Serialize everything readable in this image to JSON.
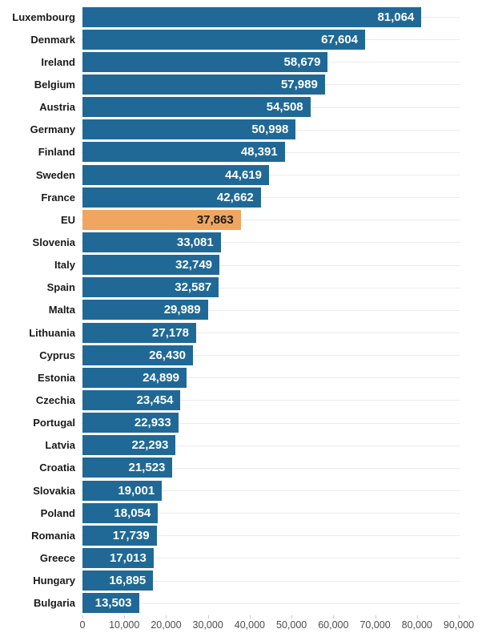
{
  "chart_data": {
    "type": "bar",
    "orientation": "horizontal",
    "title": "",
    "categories": [
      "Luxembourg",
      "Denmark",
      "Ireland",
      "Belgium",
      "Austria",
      "Germany",
      "Finland",
      "Sweden",
      "France",
      "EU",
      "Slovenia",
      "Italy",
      "Spain",
      "Malta",
      "Lithuania",
      "Cyprus",
      "Estonia",
      "Czechia",
      "Portugal",
      "Latvia",
      "Croatia",
      "Slovakia",
      "Poland",
      "Romania",
      "Greece",
      "Hungary",
      "Bulgaria"
    ],
    "values": [
      81064,
      67604,
      58679,
      57989,
      54508,
      50998,
      48391,
      44619,
      42662,
      37863,
      33081,
      32749,
      32587,
      29989,
      27178,
      26430,
      24899,
      23454,
      22933,
      22293,
      21523,
      19001,
      18054,
      17739,
      17013,
      16895,
      13503
    ],
    "value_labels": [
      "81,064",
      "67,604",
      "58,679",
      "57,989",
      "54,508",
      "50,998",
      "48,391",
      "44,619",
      "42,662",
      "37,863",
      "33,081",
      "32,749",
      "32,587",
      "29,989",
      "27,178",
      "26,430",
      "24,899",
      "23,454",
      "22,933",
      "22,293",
      "21,523",
      "19,001",
      "18,054",
      "17,739",
      "17,013",
      "16,895",
      "13,503"
    ],
    "highlight_category": "EU",
    "xlabel": "",
    "ylabel": "",
    "xlim": [
      0,
      90000
    ],
    "x_tick_interval": 10000,
    "x_tick_labels": [
      "0",
      "10,000",
      "20,000",
      "30,000",
      "40,000",
      "50,000",
      "60,000",
      "70,000",
      "80,000",
      "90,000"
    ],
    "grid": "horizontal-row-lines",
    "legend": "none"
  },
  "colors": {
    "bar": "#206996",
    "highlight_bar": "#f0a660",
    "value_label": "#ffffff",
    "highlight_value_label": "#1a1a1a",
    "category_label": "#1a1a1a",
    "axis_label": "#4d4d4d",
    "gridline": "#ebebeb",
    "tick": "#c9c9c9",
    "background": "#ffffff"
  }
}
